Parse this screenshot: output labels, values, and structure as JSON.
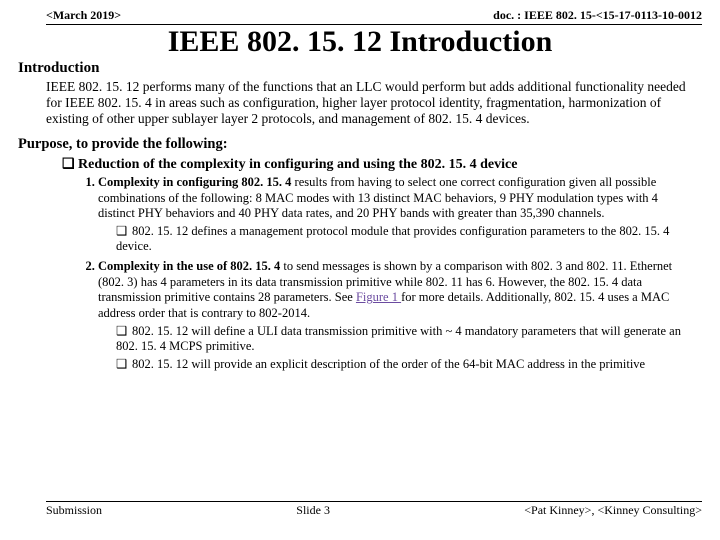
{
  "header": {
    "date": "<March 2019>",
    "docref": "doc. : IEEE 802. 15-<15-17-0113-10-0012"
  },
  "title": "IEEE 802. 15. 12 Introduction",
  "section_heading": "Introduction",
  "intro_paragraph": "IEEE 802. 15. 12 performs many of the functions that an LLC would perform but adds additional functionality needed for IEEE 802. 15. 4 in areas such as configuration, higher layer protocol identity, fragmentation, harmonization of existing of other upper sublayer layer 2 protocols, and management of 802. 15. 4 devices.",
  "purpose_heading": "Purpose, to provide the following:",
  "reduction_bullet": "Reduction of the complexity in configuring and using the 802. 15. 4 device",
  "item1": {
    "lead": "Complexity in configuring 802. 15. 4",
    "rest": " results from having to select one correct configuration given all possible combinations of the following: 8 MAC modes with 13 distinct MAC behaviors, 9 PHY modulation types with 4 distinct PHY behaviors and 40 PHY data rates, and 20 PHY bands with greater than 35,390 channels.",
    "sub": "802. 15. 12 defines a management protocol module that provides configuration parameters to the 802. 15. 4 device."
  },
  "item2": {
    "lead": "Complexity in the use of 802. 15. 4",
    "rest_a": " to send messages is shown by a comparison with 802. 3 and 802. 11.  Ethernet (802. 3) has 4 parameters in its data transmission primitive while 802. 11 has 6.  However, the 802. 15. 4 data transmission primitive contains 28 parameters.  See ",
    "fig": "Figure 1 ",
    "rest_b": "for more details.  Additionally, 802. 15. 4 uses a MAC address order that is contrary to 802-2014.",
    "sub1": "802. 15. 12 will define a ULI data transmission primitive with ~ 4 mandatory parameters that will generate an 802. 15. 4 MCPS primitive.",
    "sub2": "802. 15. 12 will provide an explicit description of the order of the 64-bit MAC address in the primitive"
  },
  "footer": {
    "left": "Submission",
    "center": "Slide 3",
    "right": "<Pat Kinney>, <Kinney Consulting>"
  },
  "colors": {
    "text": "#000000",
    "background": "#ffffff",
    "link": "#6b4ba0",
    "rule": "#000000"
  },
  "typography": {
    "body_family": "Times New Roman",
    "title_size_pt": 30,
    "section_size_pt": 15,
    "body_size_pt": 13.5,
    "list_size_pt": 12.5,
    "header_footer_size_pt": 12
  }
}
